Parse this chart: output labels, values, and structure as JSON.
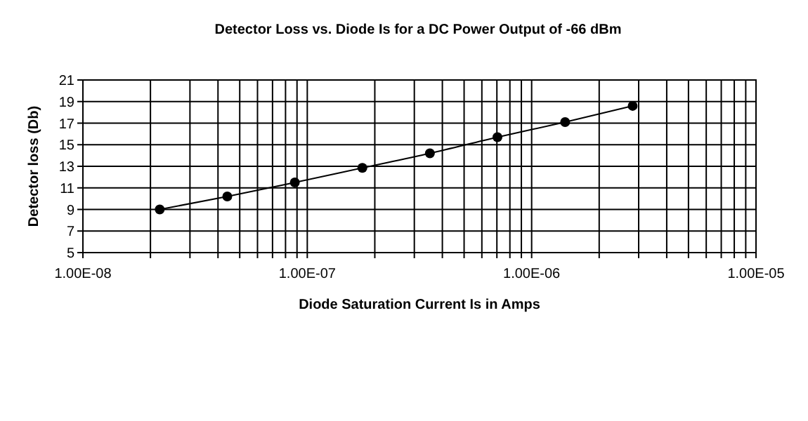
{
  "chart_data": {
    "type": "line",
    "title": "Detector Loss vs. Diode Is for a DC Power Output of -66 dBm",
    "xlabel": "Diode Saturation Current Is in Amps",
    "ylabel": "Detector loss (Db)",
    "log": "x",
    "grid": true,
    "marker": "circle",
    "line_style": "solid",
    "x": [
      2.2e-08,
      4.4e-08,
      8.8e-08,
      1.76e-07,
      3.52e-07,
      7.04e-07,
      1.41e-06,
      2.82e-06
    ],
    "series": [
      {
        "color": "#000000",
        "values": [
          9.0,
          10.2,
          11.5,
          12.85,
          14.2,
          15.7,
          17.1,
          18.6
        ]
      }
    ],
    "xlim": [
      1e-08,
      1e-05
    ],
    "ylim": [
      5,
      21
    ],
    "yticks": [
      5,
      7,
      9,
      11,
      13,
      15,
      17,
      19,
      21
    ],
    "xticks": [
      {
        "value": 1e-08,
        "label": "1.00E-08"
      },
      {
        "value": 2e-08,
        "label": null
      },
      {
        "value": 3e-08,
        "label": null
      },
      {
        "value": 4e-08,
        "label": null
      },
      {
        "value": 5e-08,
        "label": null
      },
      {
        "value": 6e-08,
        "label": null
      },
      {
        "value": 7e-08,
        "label": null
      },
      {
        "value": 8e-08,
        "label": null
      },
      {
        "value": 9e-08,
        "label": null
      },
      {
        "value": 1e-07,
        "label": "1.00E-07"
      },
      {
        "value": 2e-07,
        "label": null
      },
      {
        "value": 3e-07,
        "label": null
      },
      {
        "value": 4e-07,
        "label": null
      },
      {
        "value": 5e-07,
        "label": null
      },
      {
        "value": 6e-07,
        "label": null
      },
      {
        "value": 7e-07,
        "label": null
      },
      {
        "value": 8e-07,
        "label": null
      },
      {
        "value": 9e-07,
        "label": null
      },
      {
        "value": 1e-06,
        "label": "1.00E-06"
      },
      {
        "value": 2e-06,
        "label": null
      },
      {
        "value": 3e-06,
        "label": null
      },
      {
        "value": 4e-06,
        "label": null
      },
      {
        "value": 5e-06,
        "label": null
      },
      {
        "value": 6e-06,
        "label": null
      },
      {
        "value": 7e-06,
        "label": null
      },
      {
        "value": 8e-06,
        "label": null
      },
      {
        "value": 9e-06,
        "label": null
      },
      {
        "value": 1e-05,
        "label": "1.00E-05"
      }
    ]
  }
}
